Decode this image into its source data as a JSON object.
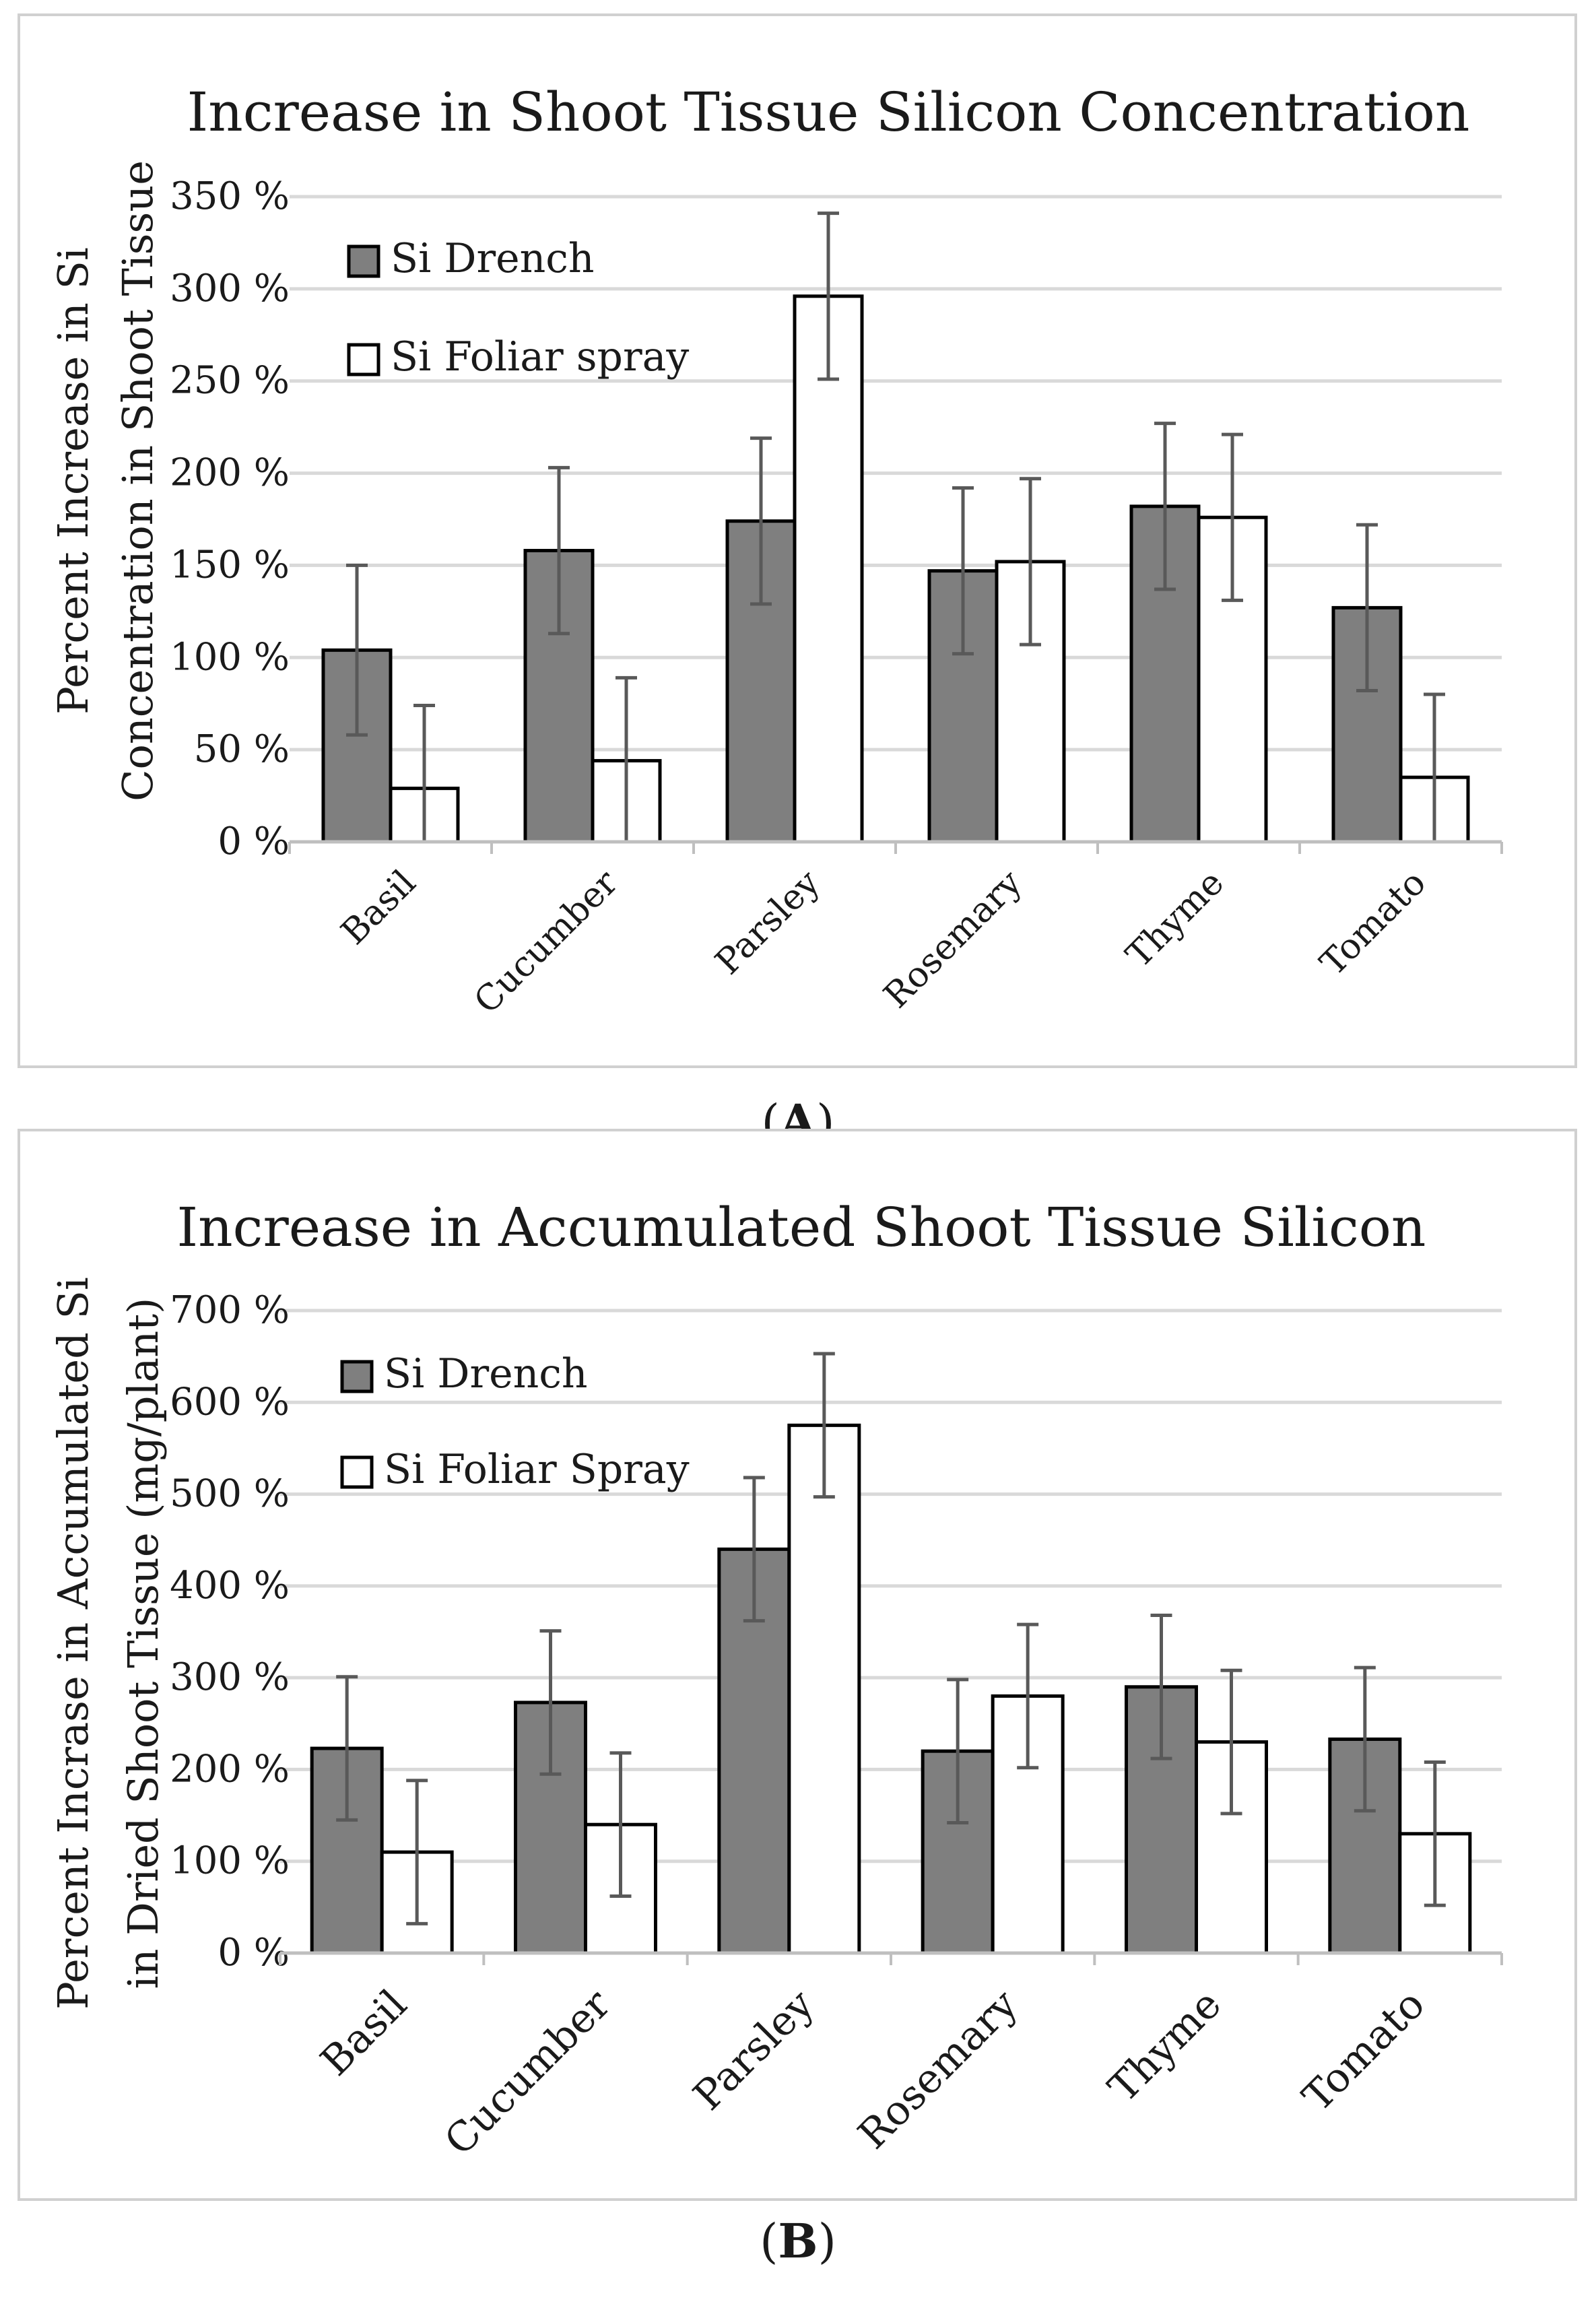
{
  "panels": [
    {
      "caption_letter": "A",
      "chart_data": {
        "type": "bar",
        "title": "Increase in Shoot Tissue Silicon Concentration",
        "ylabel_lines": [
          "Percent Increase in Si",
          "Concentration in Shoot Tissue"
        ],
        "xlabel": "",
        "categories": [
          "Basil",
          "Cucumber",
          "Parsley",
          "Rosemary",
          "Thyme",
          "Tomato"
        ],
        "ylim": [
          0,
          350
        ],
        "ytick_step": 50,
        "ytick_labels": [
          "0 %",
          "50 %",
          "100 %",
          "150 %",
          "200 %",
          "250 %",
          "300 %",
          "350 %"
        ],
        "grid": true,
        "legend": "top-left",
        "series": [
          {
            "name": "Si Drench",
            "color": "#7f7f7f",
            "values": [
              104,
              158,
              174,
              147,
              182,
              127
            ],
            "errors": [
              46,
              45,
              45,
              45,
              45,
              45
            ]
          },
          {
            "name": "Si Foliar spray",
            "color": "#ffffff",
            "values": [
              29,
              44,
              296,
              152,
              176,
              35
            ],
            "errors": [
              45,
              45,
              45,
              45,
              45,
              45
            ]
          }
        ]
      }
    },
    {
      "caption_letter": "B",
      "chart_data": {
        "type": "bar",
        "title": "Increase in Accumulated Shoot Tissue Silicon",
        "ylabel_lines": [
          "Percent Incrase in Accumulated Si",
          "in Dried Shoot Tissue (mg/plant)"
        ],
        "xlabel": "",
        "categories": [
          "Basil",
          "Cucumber",
          "Parsley",
          "Rosemary",
          "Thyme",
          "Tomato"
        ],
        "ylim": [
          0,
          700
        ],
        "ytick_step": 100,
        "ytick_labels": [
          "0 %",
          "100 %",
          "200 %",
          "300 %",
          "400 %",
          "500 %",
          "600 %",
          "700 %"
        ],
        "grid": true,
        "legend": "top-left",
        "series": [
          {
            "name": "Si Drench",
            "color": "#7f7f7f",
            "values": [
              223,
              273,
              440,
              220,
              290,
              233
            ],
            "errors": [
              78,
              78,
              78,
              78,
              78,
              78
            ]
          },
          {
            "name": "Si Foliar Spray",
            "color": "#ffffff",
            "values": [
              110,
              140,
              575,
              280,
              230,
              130
            ],
            "errors": [
              78,
              78,
              78,
              78,
              78,
              78
            ]
          }
        ]
      }
    }
  ]
}
